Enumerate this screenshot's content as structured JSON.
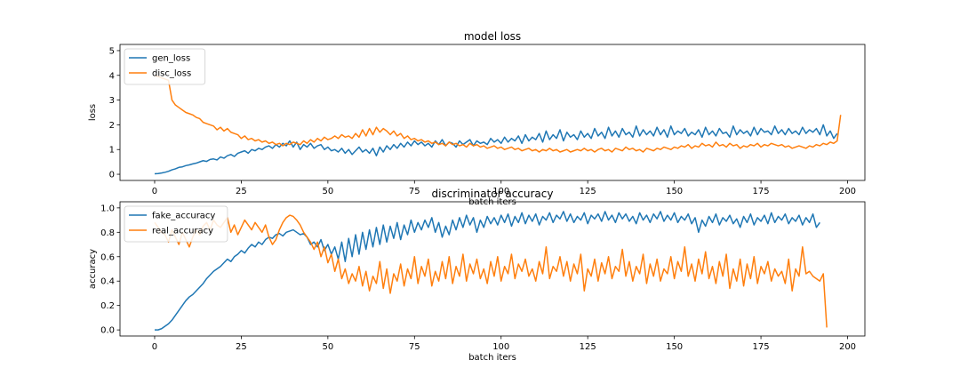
{
  "chart_data": [
    {
      "type": "line",
      "title": "model loss",
      "xlabel": "batch iters",
      "ylabel": "loss",
      "xlim": [
        -10,
        205
      ],
      "ylim": [
        -0.25,
        5.25
      ],
      "xticks": [
        0,
        25,
        50,
        75,
        100,
        125,
        150,
        175,
        200
      ],
      "yticks": [
        0,
        1,
        2,
        3,
        4,
        5
      ],
      "legend": "top-left",
      "grid": false,
      "series": [
        {
          "name": "gen_loss",
          "color": "#1f77b4",
          "values": [
            0.02,
            0.03,
            0.05,
            0.08,
            0.12,
            0.18,
            0.22,
            0.28,
            0.3,
            0.35,
            0.38,
            0.42,
            0.45,
            0.5,
            0.55,
            0.52,
            0.6,
            0.62,
            0.58,
            0.7,
            0.65,
            0.75,
            0.8,
            0.72,
            0.85,
            0.9,
            0.95,
            0.85,
            1.0,
            0.95,
            1.05,
            1.0,
            1.1,
            1.15,
            1.05,
            1.2,
            1.1,
            1.25,
            1.15,
            1.35,
            1.1,
            1.3,
            1.0,
            1.2,
            1.1,
            1.25,
            1.05,
            1.15,
            1.2,
            1.0,
            1.1,
            0.95,
            1.0,
            0.9,
            1.05,
            0.85,
            1.0,
            0.8,
            0.95,
            1.1,
            0.9,
            1.0,
            0.85,
            1.05,
            0.75,
            1.1,
            0.9,
            1.15,
            1.0,
            1.2,
            1.05,
            1.25,
            1.1,
            1.3,
            1.15,
            1.35,
            1.2,
            1.3,
            1.15,
            1.25,
            1.1,
            1.35,
            1.2,
            1.4,
            1.15,
            1.3,
            1.25,
            1.1,
            1.35,
            1.2,
            1.3,
            1.4,
            1.15,
            1.35,
            1.25,
            1.3,
            1.2,
            1.45,
            1.3,
            1.4,
            1.25,
            1.5,
            1.3,
            1.45,
            1.35,
            1.55,
            1.25,
            1.6,
            1.35,
            1.5,
            1.4,
            1.65,
            1.3,
            1.75,
            1.4,
            1.6,
            1.45,
            1.8,
            1.35,
            1.7,
            1.5,
            1.6,
            1.4,
            1.75,
            1.5,
            1.65,
            1.45,
            1.85,
            1.55,
            1.7,
            1.45,
            1.9,
            1.55,
            1.75,
            1.5,
            1.85,
            1.6,
            1.7,
            1.5,
            1.95,
            1.55,
            1.8,
            1.6,
            1.75,
            1.55,
            1.9,
            1.6,
            1.8,
            1.5,
            1.95,
            1.6,
            1.75,
            1.65,
            1.85,
            1.55,
            1.7,
            1.6,
            1.8,
            1.5,
            1.9,
            1.6,
            1.75,
            1.55,
            1.85,
            1.65,
            1.7,
            1.5,
            1.95,
            1.6,
            1.8,
            1.65,
            1.75,
            1.55,
            1.9,
            1.6,
            1.85,
            1.7,
            1.75,
            1.6,
            1.95,
            1.65,
            1.8,
            1.6,
            1.85,
            1.65,
            1.75,
            1.6,
            1.9,
            1.65,
            1.8,
            1.7,
            1.85,
            1.6,
            2.0,
            1.55,
            1.75,
            1.45,
            1.65
          ]
        },
        {
          "name": "disc_loss",
          "color": "#ff7f0e",
          "values": [
            4.0,
            3.95,
            3.9,
            3.85,
            3.8,
            3.0,
            2.8,
            2.7,
            2.6,
            2.5,
            2.45,
            2.4,
            2.3,
            2.25,
            2.1,
            2.05,
            2.0,
            1.95,
            1.8,
            1.9,
            1.75,
            1.85,
            1.7,
            1.65,
            1.6,
            1.45,
            1.55,
            1.4,
            1.45,
            1.35,
            1.4,
            1.3,
            1.35,
            1.25,
            1.3,
            1.2,
            1.25,
            1.15,
            1.25,
            1.2,
            1.3,
            1.25,
            1.2,
            1.35,
            1.25,
            1.4,
            1.3,
            1.45,
            1.35,
            1.5,
            1.4,
            1.45,
            1.55,
            1.45,
            1.6,
            1.5,
            1.55,
            1.45,
            1.65,
            1.5,
            1.8,
            1.55,
            1.85,
            1.6,
            1.9,
            1.7,
            1.85,
            1.75,
            1.6,
            1.75,
            1.55,
            1.65,
            1.45,
            1.55,
            1.4,
            1.45,
            1.35,
            1.4,
            1.3,
            1.35,
            1.25,
            1.3,
            1.2,
            1.25,
            1.15,
            1.3,
            1.2,
            1.25,
            1.15,
            1.2,
            1.1,
            1.25,
            1.15,
            1.2,
            1.1,
            1.15,
            1.05,
            1.1,
            1.15,
            1.05,
            1.1,
            1.0,
            1.05,
            1.1,
            1.0,
            1.05,
            0.95,
            1.0,
            1.05,
            0.95,
            1.0,
            0.9,
            1.0,
            0.95,
            1.05,
            0.95,
            1.0,
            0.9,
            0.95,
            1.0,
            0.9,
            0.95,
            1.0,
            0.95,
            1.05,
            0.95,
            1.0,
            0.9,
            1.0,
            1.05,
            0.95,
            1.0,
            0.9,
            1.05,
            1.0,
            0.95,
            1.1,
            1.0,
            1.05,
            0.95,
            1.0,
            0.9,
            1.05,
            1.0,
            0.95,
            1.05,
            1.0,
            1.1,
            1.05,
            1.0,
            1.1,
            1.05,
            1.15,
            1.1,
            1.2,
            1.05,
            1.15,
            1.1,
            1.25,
            1.15,
            1.2,
            1.1,
            1.3,
            1.15,
            1.2,
            1.1,
            1.25,
            1.15,
            1.2,
            1.05,
            1.15,
            1.1,
            1.2,
            1.15,
            1.25,
            1.1,
            1.2,
            1.15,
            1.25,
            1.2,
            1.15,
            1.2,
            1.1,
            1.15,
            1.05,
            1.1,
            1.15,
            1.1,
            1.05,
            1.15,
            1.1,
            1.2,
            1.15,
            1.25,
            1.2,
            1.3,
            1.25,
            1.35,
            2.4
          ]
        }
      ]
    },
    {
      "type": "line",
      "title": "discriminator accuracy",
      "xlabel": "batch iters",
      "ylabel": "accuracy",
      "xlim": [
        -10,
        205
      ],
      "ylim": [
        -0.05,
        1.05
      ],
      "xticks": [
        0,
        25,
        50,
        75,
        100,
        125,
        150,
        175,
        200
      ],
      "yticks": [
        0.0,
        0.2,
        0.4,
        0.6,
        0.8,
        1.0
      ],
      "legend": "top-left",
      "grid": false,
      "series": [
        {
          "name": "fake_accuracy",
          "color": "#1f77b4",
          "values": [
            0.0,
            0.0,
            0.01,
            0.03,
            0.05,
            0.08,
            0.12,
            0.16,
            0.2,
            0.24,
            0.27,
            0.29,
            0.32,
            0.35,
            0.38,
            0.42,
            0.45,
            0.48,
            0.5,
            0.52,
            0.55,
            0.58,
            0.56,
            0.6,
            0.62,
            0.65,
            0.63,
            0.67,
            0.7,
            0.68,
            0.72,
            0.7,
            0.74,
            0.76,
            0.75,
            0.78,
            0.79,
            0.77,
            0.8,
            0.81,
            0.82,
            0.8,
            0.78,
            0.79,
            0.76,
            0.7,
            0.72,
            0.68,
            0.74,
            0.65,
            0.7,
            0.62,
            0.68,
            0.58,
            0.72,
            0.56,
            0.75,
            0.6,
            0.78,
            0.62,
            0.8,
            0.66,
            0.82,
            0.68,
            0.84,
            0.7,
            0.86,
            0.72,
            0.85,
            0.75,
            0.88,
            0.74,
            0.86,
            0.78,
            0.9,
            0.8,
            0.88,
            0.82,
            0.9,
            0.84,
            0.92,
            0.8,
            0.88,
            0.76,
            0.85,
            0.78,
            0.9,
            0.82,
            0.92,
            0.84,
            0.94,
            0.86,
            0.92,
            0.8,
            0.9,
            0.84,
            0.93,
            0.87,
            0.92,
            0.86,
            0.94,
            0.88,
            0.95,
            0.85,
            0.93,
            0.88,
            0.96,
            0.87,
            0.94,
            0.89,
            0.95,
            0.86,
            0.93,
            0.9,
            0.96,
            0.88,
            0.94,
            0.91,
            0.97,
            0.89,
            0.95,
            0.88,
            0.93,
            0.9,
            0.96,
            0.87,
            0.94,
            0.91,
            0.95,
            0.89,
            0.97,
            0.9,
            0.94,
            0.88,
            0.96,
            0.91,
            0.95,
            0.89,
            0.93,
            0.87,
            0.96,
            0.9,
            0.94,
            0.88,
            0.95,
            0.91,
            0.97,
            0.89,
            0.94,
            0.9,
            0.96,
            0.88,
            0.93,
            0.9,
            0.95,
            0.87,
            0.92,
            0.8,
            0.9,
            0.85,
            0.93,
            0.88,
            0.95,
            0.86,
            0.92,
            0.89,
            0.94,
            0.87,
            0.91,
            0.84,
            0.93,
            0.88,
            0.95,
            0.86,
            0.92,
            0.89,
            0.94,
            0.87,
            0.96,
            0.88,
            0.93,
            0.9,
            0.95,
            0.87,
            0.92,
            0.89,
            0.94,
            0.86,
            0.92,
            0.88,
            0.95,
            0.84,
            0.88
          ]
        },
        {
          "name": "real_accuracy",
          "color": "#ff7f0e",
          "values": [
            0.88,
            0.84,
            0.8,
            0.78,
            0.72,
            0.82,
            0.76,
            0.7,
            0.8,
            0.74,
            0.68,
            0.76,
            0.82,
            0.78,
            0.85,
            0.88,
            0.82,
            0.9,
            0.86,
            0.84,
            0.88,
            0.92,
            0.8,
            0.86,
            0.78,
            0.84,
            0.9,
            0.86,
            0.82,
            0.88,
            0.84,
            0.8,
            0.86,
            0.76,
            0.7,
            0.74,
            0.82,
            0.88,
            0.92,
            0.94,
            0.93,
            0.9,
            0.86,
            0.8,
            0.76,
            0.72,
            0.66,
            0.72,
            0.6,
            0.68,
            0.55,
            0.62,
            0.48,
            0.58,
            0.42,
            0.5,
            0.38,
            0.46,
            0.4,
            0.52,
            0.36,
            0.48,
            0.32,
            0.44,
            0.38,
            0.56,
            0.34,
            0.5,
            0.3,
            0.46,
            0.4,
            0.54,
            0.36,
            0.5,
            0.42,
            0.6,
            0.38,
            0.52,
            0.44,
            0.58,
            0.36,
            0.48,
            0.4,
            0.56,
            0.42,
            0.6,
            0.38,
            0.52,
            0.44,
            0.62,
            0.4,
            0.54,
            0.46,
            0.58,
            0.42,
            0.5,
            0.38,
            0.56,
            0.44,
            0.6,
            0.4,
            0.52,
            0.46,
            0.62,
            0.42,
            0.54,
            0.48,
            0.58,
            0.44,
            0.5,
            0.4,
            0.56,
            0.46,
            0.68,
            0.42,
            0.52,
            0.48,
            0.6,
            0.44,
            0.56,
            0.4,
            0.54,
            0.46,
            0.62,
            0.32,
            0.5,
            0.44,
            0.58,
            0.4,
            0.55,
            0.46,
            0.6,
            0.42,
            0.52,
            0.48,
            0.66,
            0.44,
            0.56,
            0.4,
            0.52,
            0.46,
            0.62,
            0.38,
            0.54,
            0.44,
            0.58,
            0.4,
            0.5,
            0.46,
            0.6,
            0.42,
            0.56,
            0.48,
            0.68,
            0.44,
            0.54,
            0.4,
            0.58,
            0.46,
            0.64,
            0.42,
            0.52,
            0.38,
            0.56,
            0.44,
            0.62,
            0.34,
            0.5,
            0.4,
            0.58,
            0.36,
            0.54,
            0.42,
            0.6,
            0.38,
            0.52,
            0.46,
            0.56,
            0.4,
            0.5,
            0.44,
            0.48,
            0.38,
            0.58,
            0.32,
            0.5,
            0.44,
            0.68,
            0.46,
            0.48,
            0.44,
            0.42,
            0.4,
            0.46,
            0.02
          ]
        }
      ]
    }
  ]
}
